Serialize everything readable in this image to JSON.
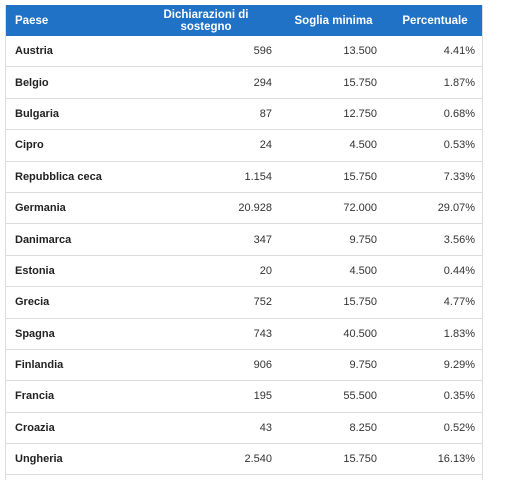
{
  "table": {
    "header": [
      "Paese",
      "Dichiarazioni di sostegno",
      "Soglia minima",
      "Percentuale"
    ],
    "rows": [
      [
        "Austria",
        "596",
        "13.500",
        "4.41%"
      ],
      [
        "Belgio",
        "294",
        "15.750",
        "1.87%"
      ],
      [
        "Bulgaria",
        "87",
        "12.750",
        "0.68%"
      ],
      [
        "Cipro",
        "24",
        "4.500",
        "0.53%"
      ],
      [
        "Repubblica ceca",
        "1.154",
        "15.750",
        "7.33%"
      ],
      [
        "Germania",
        "20.928",
        "72.000",
        "29.07%"
      ],
      [
        "Danimarca",
        "347",
        "9.750",
        "3.56%"
      ],
      [
        "Estonia",
        "20",
        "4.500",
        "0.44%"
      ],
      [
        "Grecia",
        "752",
        "15.750",
        "4.77%"
      ],
      [
        "Spagna",
        "743",
        "40.500",
        "1.83%"
      ],
      [
        "Finlandia",
        "906",
        "9.750",
        "9.29%"
      ],
      [
        "Francia",
        "195",
        "55.500",
        "0.35%"
      ],
      [
        "Croazia",
        "43",
        "8.250",
        "0.52%"
      ],
      [
        "Ungheria",
        "2.540",
        "15.750",
        "16.13%"
      ]
    ]
  }
}
